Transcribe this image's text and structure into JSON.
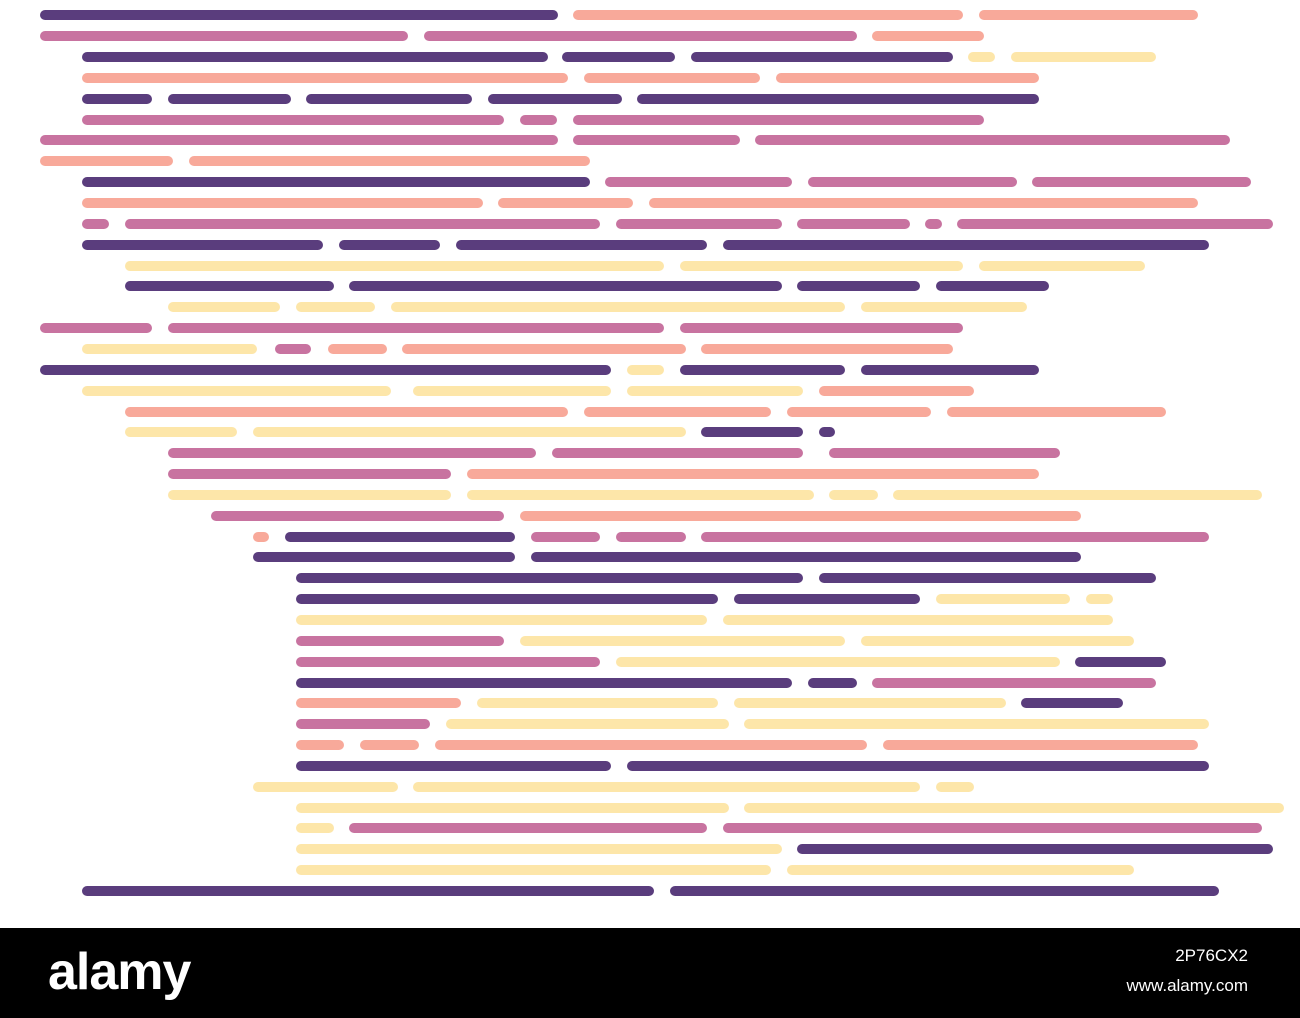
{
  "palette": {
    "purple": "#5a3d7d",
    "magenta": "#c873a0",
    "salmon": "#f8a99a",
    "yellow": "#fde6a9"
  },
  "footer": {
    "brand": "alamy",
    "image_id": "2P76CX2",
    "site": "www.alamy.com"
  }
}
